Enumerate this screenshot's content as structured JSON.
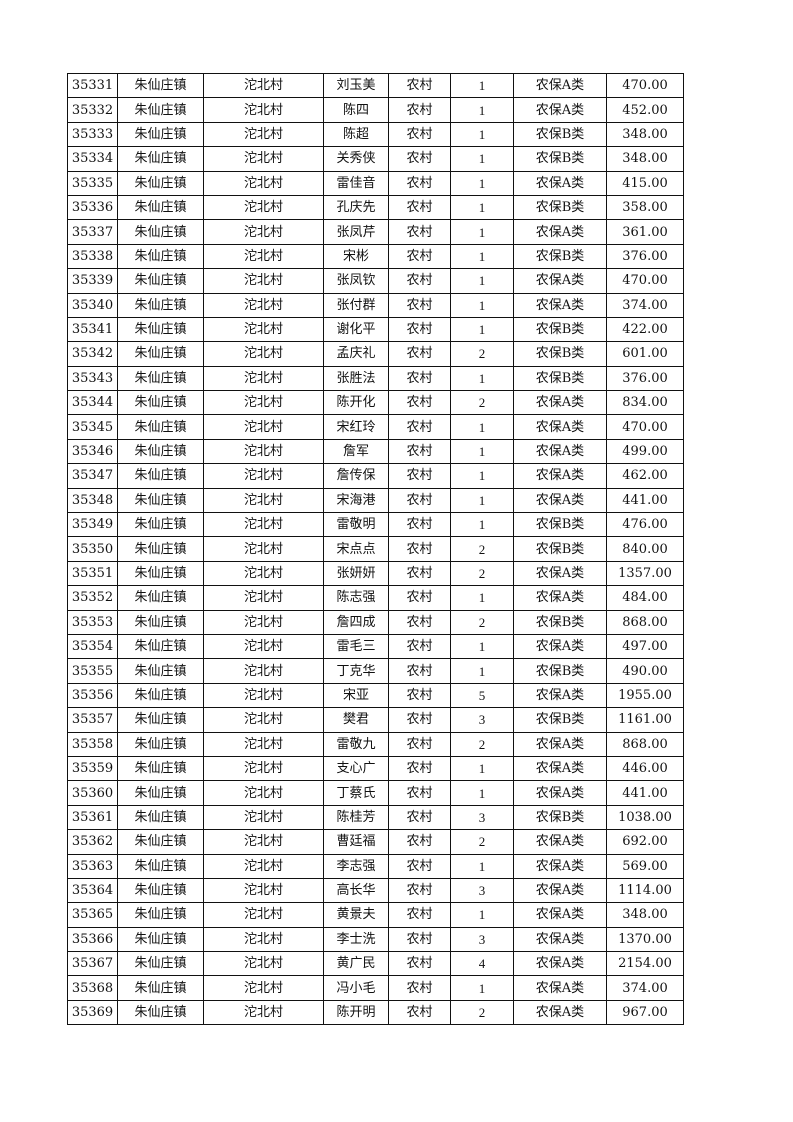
{
  "rows": [
    [
      "35331",
      "朱仙庄镇",
      "沱北村",
      "刘玉美",
      "农村",
      "1",
      "农保A类",
      "470.00"
    ],
    [
      "35332",
      "朱仙庄镇",
      "沱北村",
      "陈四",
      "农村",
      "1",
      "农保A类",
      "452.00"
    ],
    [
      "35333",
      "朱仙庄镇",
      "沱北村",
      "陈超",
      "农村",
      "1",
      "农保B类",
      "348.00"
    ],
    [
      "35334",
      "朱仙庄镇",
      "沱北村",
      "关秀侠",
      "农村",
      "1",
      "农保B类",
      "348.00"
    ],
    [
      "35335",
      "朱仙庄镇",
      "沱北村",
      "雷佳音",
      "农村",
      "1",
      "农保A类",
      "415.00"
    ],
    [
      "35336",
      "朱仙庄镇",
      "沱北村",
      "孔庆先",
      "农村",
      "1",
      "农保B类",
      "358.00"
    ],
    [
      "35337",
      "朱仙庄镇",
      "沱北村",
      "张凤芹",
      "农村",
      "1",
      "农保A类",
      "361.00"
    ],
    [
      "35338",
      "朱仙庄镇",
      "沱北村",
      "宋彬",
      "农村",
      "1",
      "农保B类",
      "376.00"
    ],
    [
      "35339",
      "朱仙庄镇",
      "沱北村",
      "张凤钦",
      "农村",
      "1",
      "农保A类",
      "470.00"
    ],
    [
      "35340",
      "朱仙庄镇",
      "沱北村",
      "张付群",
      "农村",
      "1",
      "农保A类",
      "374.00"
    ],
    [
      "35341",
      "朱仙庄镇",
      "沱北村",
      "谢化平",
      "农村",
      "1",
      "农保B类",
      "422.00"
    ],
    [
      "35342",
      "朱仙庄镇",
      "沱北村",
      "孟庆礼",
      "农村",
      "2",
      "农保B类",
      "601.00"
    ],
    [
      "35343",
      "朱仙庄镇",
      "沱北村",
      "张胜法",
      "农村",
      "1",
      "农保B类",
      "376.00"
    ],
    [
      "35344",
      "朱仙庄镇",
      "沱北村",
      "陈开化",
      "农村",
      "2",
      "农保A类",
      "834.00"
    ],
    [
      "35345",
      "朱仙庄镇",
      "沱北村",
      "宋红玲",
      "农村",
      "1",
      "农保A类",
      "470.00"
    ],
    [
      "35346",
      "朱仙庄镇",
      "沱北村",
      "詹军",
      "农村",
      "1",
      "农保A类",
      "499.00"
    ],
    [
      "35347",
      "朱仙庄镇",
      "沱北村",
      "詹传保",
      "农村",
      "1",
      "农保A类",
      "462.00"
    ],
    [
      "35348",
      "朱仙庄镇",
      "沱北村",
      "宋海港",
      "农村",
      "1",
      "农保A类",
      "441.00"
    ],
    [
      "35349",
      "朱仙庄镇",
      "沱北村",
      "雷敬明",
      "农村",
      "1",
      "农保B类",
      "476.00"
    ],
    [
      "35350",
      "朱仙庄镇",
      "沱北村",
      "宋点点",
      "农村",
      "2",
      "农保B类",
      "840.00"
    ],
    [
      "35351",
      "朱仙庄镇",
      "沱北村",
      "张妍妍",
      "农村",
      "2",
      "农保A类",
      "1357.00"
    ],
    [
      "35352",
      "朱仙庄镇",
      "沱北村",
      "陈志强",
      "农村",
      "1",
      "农保A类",
      "484.00"
    ],
    [
      "35353",
      "朱仙庄镇",
      "沱北村",
      "詹四成",
      "农村",
      "2",
      "农保B类",
      "868.00"
    ],
    [
      "35354",
      "朱仙庄镇",
      "沱北村",
      "雷毛三",
      "农村",
      "1",
      "农保A类",
      "497.00"
    ],
    [
      "35355",
      "朱仙庄镇",
      "沱北村",
      "丁克华",
      "农村",
      "1",
      "农保B类",
      "490.00"
    ],
    [
      "35356",
      "朱仙庄镇",
      "沱北村",
      "宋亚",
      "农村",
      "5",
      "农保A类",
      "1955.00"
    ],
    [
      "35357",
      "朱仙庄镇",
      "沱北村",
      "樊君",
      "农村",
      "3",
      "农保B类",
      "1161.00"
    ],
    [
      "35358",
      "朱仙庄镇",
      "沱北村",
      "雷敬九",
      "农村",
      "2",
      "农保A类",
      "868.00"
    ],
    [
      "35359",
      "朱仙庄镇",
      "沱北村",
      "支心广",
      "农村",
      "1",
      "农保A类",
      "446.00"
    ],
    [
      "35360",
      "朱仙庄镇",
      "沱北村",
      "丁蔡氏",
      "农村",
      "1",
      "农保A类",
      "441.00"
    ],
    [
      "35361",
      "朱仙庄镇",
      "沱北村",
      "陈桂芳",
      "农村",
      "3",
      "农保B类",
      "1038.00"
    ],
    [
      "35362",
      "朱仙庄镇",
      "沱北村",
      "曹廷福",
      "农村",
      "2",
      "农保A类",
      "692.00"
    ],
    [
      "35363",
      "朱仙庄镇",
      "沱北村",
      "李志强",
      "农村",
      "1",
      "农保A类",
      "569.00"
    ],
    [
      "35364",
      "朱仙庄镇",
      "沱北村",
      "高长华",
      "农村",
      "3",
      "农保A类",
      "1114.00"
    ],
    [
      "35365",
      "朱仙庄镇",
      "沱北村",
      "黄景夫",
      "农村",
      "1",
      "农保A类",
      "348.00"
    ],
    [
      "35366",
      "朱仙庄镇",
      "沱北村",
      "李士洗",
      "农村",
      "3",
      "农保A类",
      "1370.00"
    ],
    [
      "35367",
      "朱仙庄镇",
      "沱北村",
      "黄广民",
      "农村",
      "4",
      "农保A类",
      "2154.00"
    ],
    [
      "35368",
      "朱仙庄镇",
      "沱北村",
      "冯小毛",
      "农村",
      "1",
      "农保A类",
      "374.00"
    ],
    [
      "35369",
      "朱仙庄镇",
      "沱北村",
      "陈开明",
      "农村",
      "2",
      "农保A类",
      "967.00"
    ]
  ]
}
